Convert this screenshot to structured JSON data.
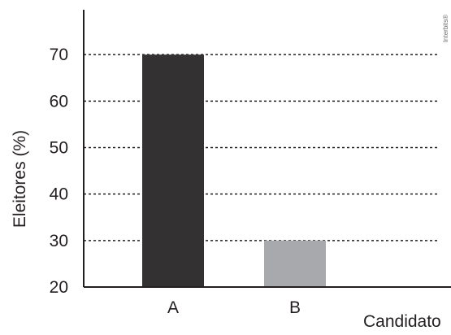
{
  "chart_data": {
    "type": "bar",
    "categories": [
      "A",
      "B"
    ],
    "values": [
      70,
      30
    ],
    "bar_colors": [
      "#333132",
      "#a7a9ac"
    ],
    "xlabel": "Candidato",
    "ylabel": "Eleitores (%)",
    "ylim": [
      20,
      80
    ],
    "yticks": [
      20,
      30,
      40,
      50,
      60,
      70
    ],
    "grid": true,
    "grid_style": "dotted",
    "watermark": "Interbits®"
  }
}
